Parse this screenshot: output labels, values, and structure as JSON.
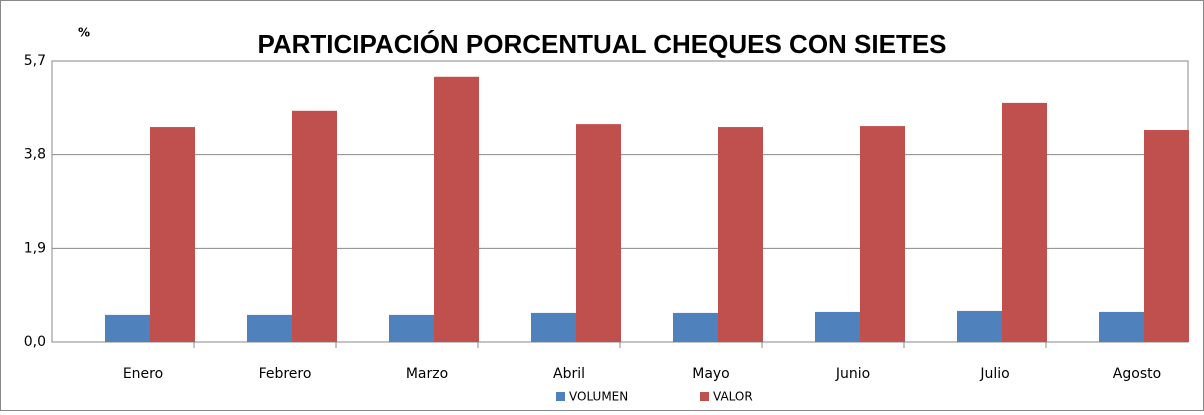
{
  "chart_data": {
    "type": "bar",
    "title": "PARTICIPACIÓN PORCENTUAL CHEQUES CON SIETES",
    "y_label": "%",
    "categories": [
      "Enero",
      "Febrero",
      "Marzo",
      "Abril",
      "Mayo",
      "Junio",
      "Julio",
      "Agosto"
    ],
    "series": [
      {
        "name": "VOLUMEN",
        "color": "#4f81bd",
        "values": [
          0.55,
          0.55,
          0.55,
          0.59,
          0.59,
          0.61,
          0.63,
          0.61
        ]
      },
      {
        "name": "VALOR",
        "color": "#c0504d",
        "values": [
          4.36,
          4.69,
          5.38,
          4.42,
          4.36,
          4.38,
          4.85,
          4.3
        ]
      }
    ],
    "ylim": [
      0,
      5.7
    ],
    "yticks": [
      {
        "value": 0,
        "label": "0,0"
      },
      {
        "value": 1.9,
        "label": "1,9"
      },
      {
        "value": 3.8,
        "label": "3,8"
      },
      {
        "value": 5.7,
        "label": "5,7"
      }
    ],
    "grid": true,
    "legend": "bottom"
  }
}
